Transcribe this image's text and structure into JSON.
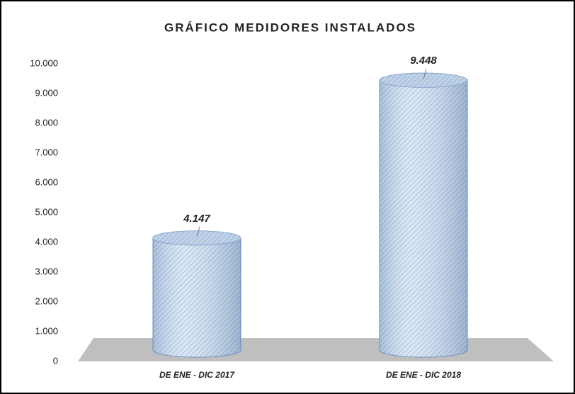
{
  "chart_data": {
    "type": "cylinder",
    "title": "GRÁFICO MEDIDORES INSTALADOS",
    "categories": [
      "DE ENE - DIC 2017",
      "DE ENE - DIC 2018"
    ],
    "values": [
      4147,
      9448
    ],
    "value_labels": [
      "4.147",
      "9.448"
    ],
    "color": "#c9dbee",
    "ylim": [
      0,
      10000
    ],
    "yticks": [
      0,
      {
        "value": 1000,
        "label": "1.000"
      },
      {
        "value": 2000,
        "label": "2.000"
      },
      {
        "value": 3000,
        "label": "3.000"
      },
      {
        "value": 4000,
        "label": "4.000"
      },
      {
        "value": 5000,
        "label": "5.000"
      },
      {
        "value": 6000,
        "label": "6.000"
      },
      {
        "value": 7000,
        "label": "7.000"
      },
      {
        "value": 8000,
        "label": "8.000"
      },
      {
        "value": 9000,
        "label": "9.000"
      },
      {
        "value": 10000,
        "label": "10.000"
      }
    ],
    "grid": false
  }
}
